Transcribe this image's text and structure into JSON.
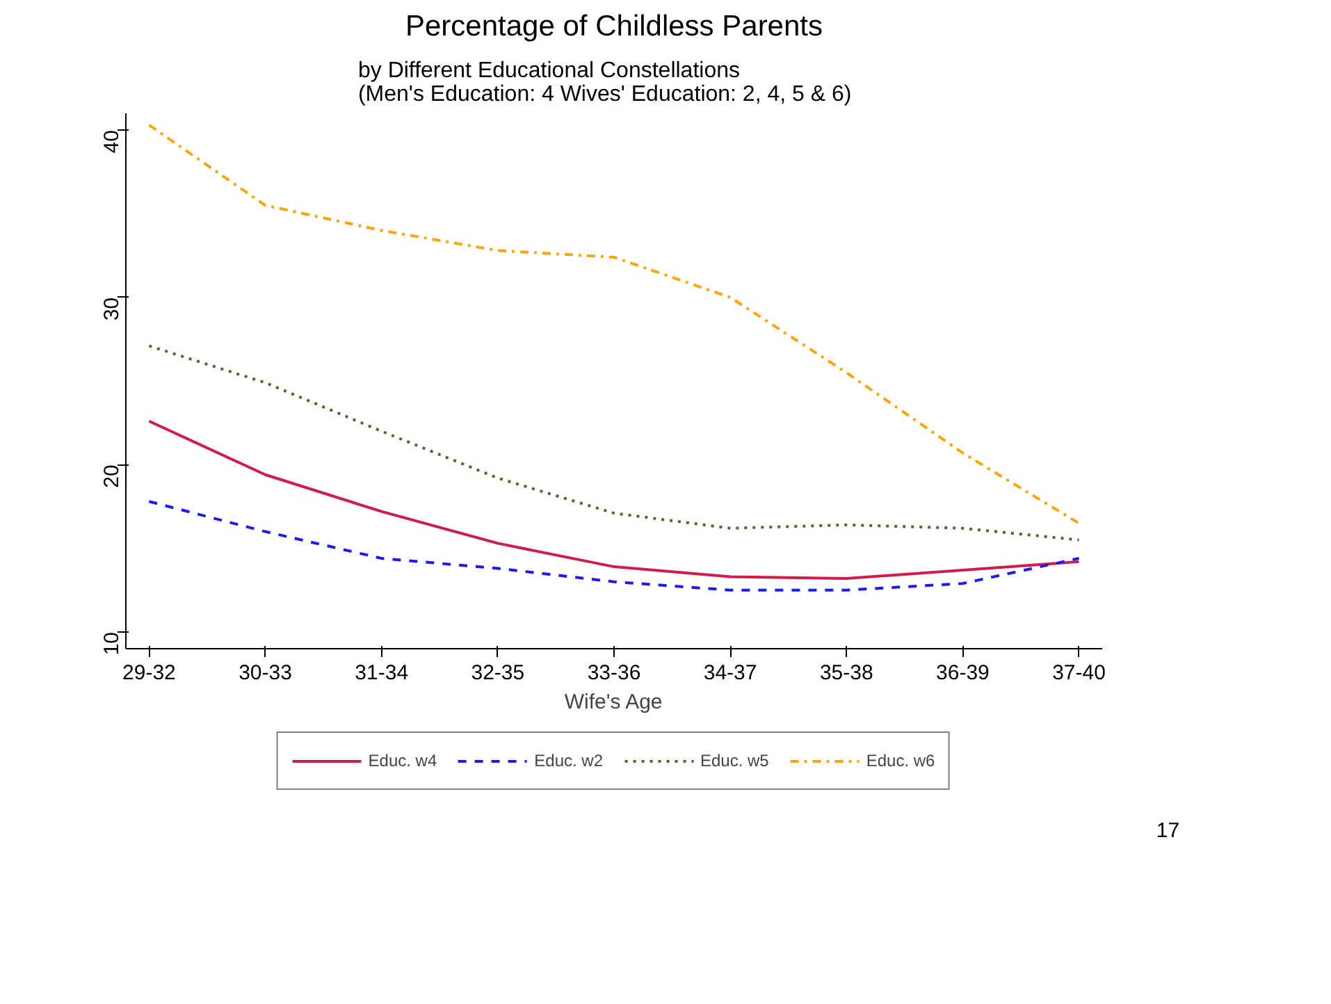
{
  "chart_data": {
    "type": "line",
    "title": "Percentage of Childless Parents",
    "subtitle": "by Different Educational Constellations\n(Men's Education: 4    Wives' Education: 2, 4, 5 & 6)",
    "xlabel": "Wife's Age",
    "categories": [
      "29-32",
      "30-33",
      "31-34",
      "32-35",
      "33-36",
      "34-37",
      "35-38",
      "36-39",
      "37-40"
    ],
    "series": [
      {
        "name": "Educ. w4",
        "color": "#d01c48",
        "line_style": "solid",
        "values": [
          22.6,
          19.4,
          17.2,
          15.3,
          13.9,
          13.3,
          13.2,
          13.7,
          14.2
        ]
      },
      {
        "name": "Educ. w2",
        "color": "#1a1aff",
        "line_style": "dashed",
        "values": [
          17.8,
          16.0,
          14.4,
          13.8,
          13.0,
          12.5,
          12.5,
          12.9,
          14.4
        ]
      },
      {
        "name": "Educ. w5",
        "color": "#6b5a2e",
        "line_style": "dotted",
        "values": [
          27.1,
          24.9,
          22.0,
          19.2,
          17.1,
          16.2,
          16.4,
          16.2,
          15.5
        ]
      },
      {
        "name": "Educ. w6",
        "color": "#ffa500",
        "line_style": "dashdot",
        "values": [
          40.3,
          35.5,
          34.0,
          32.8,
          32.4,
          30.0,
          25.5,
          20.7,
          16.5
        ]
      }
    ],
    "ylim": [
      9,
      41
    ],
    "yticks": [
      10,
      20,
      30,
      40
    ],
    "grid": false,
    "legend": "bottom",
    "marker": "none",
    "annotations": [
      "17"
    ]
  }
}
